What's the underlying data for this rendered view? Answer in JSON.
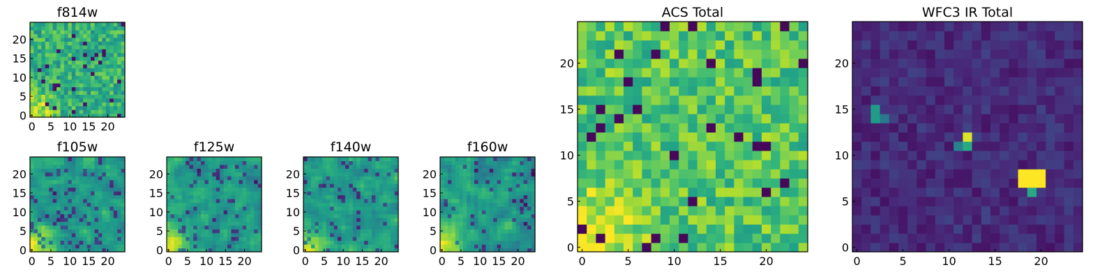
{
  "chart_data": [
    {
      "type": "heatmap",
      "title": "f814w",
      "xlim": [
        0,
        25
      ],
      "ylim": [
        0,
        25
      ],
      "xticks": [
        "0",
        "5",
        "10",
        "15",
        "20"
      ],
      "yticks": [
        "0",
        "5",
        "10",
        "15",
        "20"
      ],
      "colormap": "viridis",
      "pattern": "noisy",
      "hot_corner": "bottom-left",
      "seed": 11
    },
    {
      "type": "heatmap",
      "title": "f105w",
      "xlim": [
        0,
        25
      ],
      "ylim": [
        0,
        25
      ],
      "xticks": [
        "0",
        "5",
        "10",
        "15",
        "20"
      ],
      "yticks": [
        "0",
        "5",
        "10",
        "15",
        "20"
      ],
      "colormap": "viridis",
      "pattern": "smooth",
      "hot_corner": "bottom-left",
      "seed": 23
    },
    {
      "type": "heatmap",
      "title": "f125w",
      "xlim": [
        0,
        25
      ],
      "ylim": [
        0,
        25
      ],
      "xticks": [
        "0",
        "5",
        "10",
        "15",
        "20"
      ],
      "yticks": [
        "0",
        "5",
        "10",
        "15",
        "20"
      ],
      "colormap": "viridis",
      "pattern": "smooth",
      "hot_corner": "bottom-left",
      "seed": 37
    },
    {
      "type": "heatmap",
      "title": "f140w",
      "xlim": [
        0,
        25
      ],
      "ylim": [
        0,
        25
      ],
      "xticks": [
        "0",
        "5",
        "10",
        "15",
        "20"
      ],
      "yticks": [
        "0",
        "5",
        "10",
        "15",
        "20"
      ],
      "colormap": "viridis",
      "pattern": "smooth",
      "hot_corner": "bottom-left",
      "seed": 41
    },
    {
      "type": "heatmap",
      "title": "f160w",
      "xlim": [
        0,
        25
      ],
      "ylim": [
        0,
        25
      ],
      "xticks": [
        "0",
        "5",
        "10",
        "15",
        "20"
      ],
      "yticks": [
        "0",
        "5",
        "10",
        "15",
        "20"
      ],
      "colormap": "viridis",
      "pattern": "smooth",
      "hot_corner": "bottom-left",
      "seed": 53
    },
    {
      "type": "heatmap",
      "title": "ACS Total",
      "xlim": [
        0,
        25
      ],
      "ylim": [
        0,
        25
      ],
      "xticks": [
        "0",
        "5",
        "10",
        "15",
        "20"
      ],
      "yticks": [
        "0",
        "5",
        "10",
        "15",
        "20"
      ],
      "colormap": "viridis",
      "pattern": "noisy-bright",
      "hot_corner": "bottom-left",
      "seed": 67
    },
    {
      "type": "heatmap",
      "title": "WFC3 IR Total",
      "xlim": [
        0,
        25
      ],
      "ylim": [
        0,
        25
      ],
      "xticks": [
        "0",
        "5",
        "10",
        "15",
        "20"
      ],
      "yticks": [
        "0",
        "5",
        "10",
        "15",
        "20"
      ],
      "colormap": "viridis",
      "pattern": "dark",
      "hot_spots": [
        {
          "x": 18,
          "y": 7,
          "w": 3,
          "h": 2,
          "value": 1.0
        },
        {
          "x": 19,
          "y": 6,
          "w": 1,
          "h": 1,
          "value": 0.6
        },
        {
          "x": 2,
          "y": 14,
          "w": 1,
          "h": 2,
          "value": 0.55
        },
        {
          "x": 3,
          "y": 14,
          "w": 1,
          "h": 1,
          "value": 0.4
        },
        {
          "x": 12,
          "y": 12,
          "w": 1,
          "h": 1,
          "value": 0.95
        },
        {
          "x": 12,
          "y": 11,
          "w": 1,
          "h": 1,
          "value": 0.6
        },
        {
          "x": 11,
          "y": 11,
          "w": 1,
          "h": 1,
          "value": 0.45
        }
      ],
      "seed": 79
    }
  ]
}
